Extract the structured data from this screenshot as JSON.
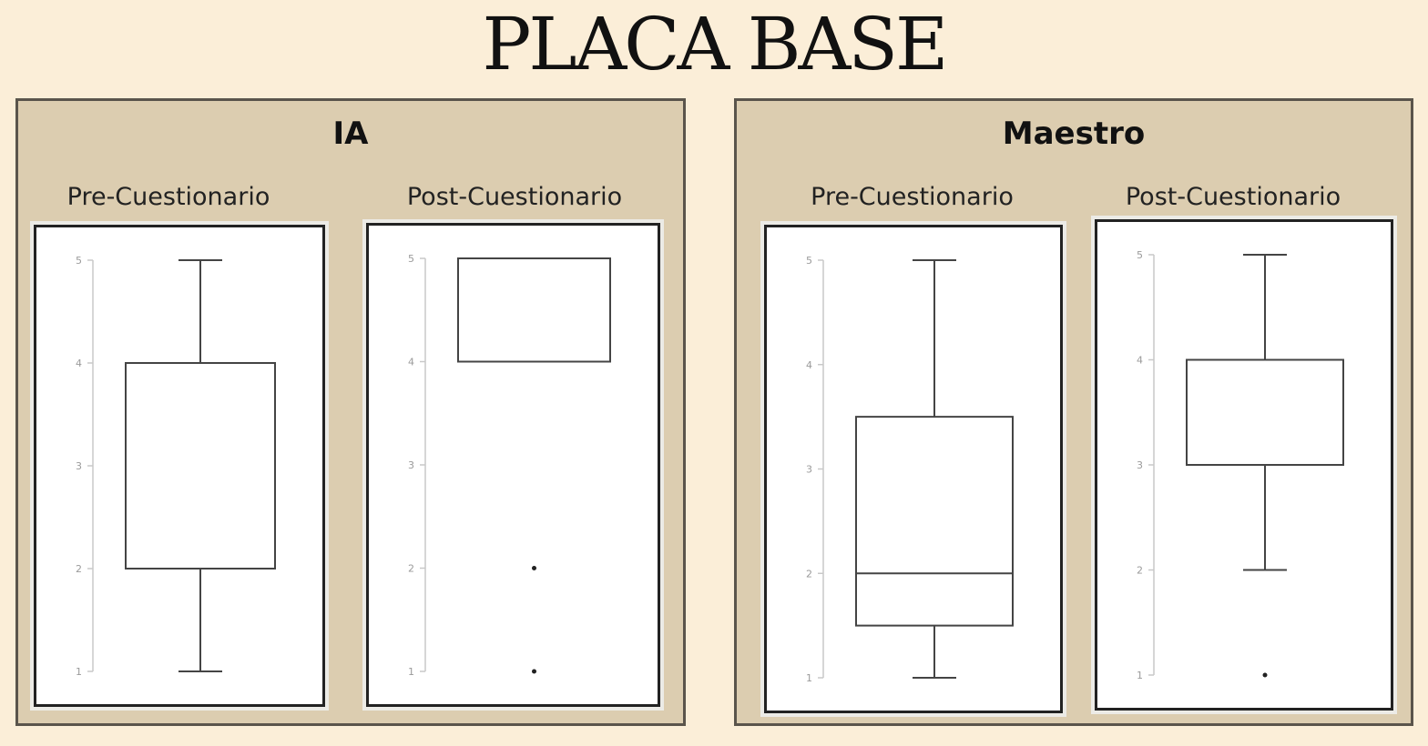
{
  "title": "PLACA BASE",
  "groups": [
    {
      "name": "IA",
      "sub_left": "Pre-Cuestionario",
      "sub_right": "Post-Cuestionario"
    },
    {
      "name": "Maestro",
      "sub_left": "Pre-Cuestionario",
      "sub_right": "Post-Cuestionario"
    }
  ],
  "chart_data": [
    {
      "type": "box",
      "group": "IA",
      "label": "Pre-Cuestionario",
      "yticks": [
        1,
        2,
        3,
        4,
        5
      ],
      "ylim": [
        1,
        5
      ],
      "whisker_low": 1,
      "q1": 2,
      "median": null,
      "q3": 4,
      "whisker_high": 5,
      "outliers": []
    },
    {
      "type": "box",
      "group": "IA",
      "label": "Post-Cuestionario",
      "yticks": [
        1,
        2,
        3,
        4,
        5
      ],
      "ylim": [
        1,
        5
      ],
      "whisker_low": 4,
      "q1": 4,
      "median": 4,
      "q3": 5,
      "whisker_high": 5,
      "outliers": [
        2,
        1
      ]
    },
    {
      "type": "box",
      "group": "Maestro",
      "label": "Pre-Cuestionario",
      "yticks": [
        1,
        2,
        3,
        4,
        5
      ],
      "ylim": [
        1,
        5
      ],
      "whisker_low": 1,
      "q1": 1.5,
      "median": 2,
      "q3": 3.5,
      "whisker_high": 5,
      "outliers": []
    },
    {
      "type": "box",
      "group": "Maestro",
      "label": "Post-Cuestionario",
      "yticks": [
        1,
        2,
        3,
        4,
        5
      ],
      "ylim": [
        1,
        5
      ],
      "whisker_low": 2,
      "q1": 3,
      "median": null,
      "q3": 4,
      "whisker_high": 5,
      "outliers": [
        1
      ]
    }
  ]
}
